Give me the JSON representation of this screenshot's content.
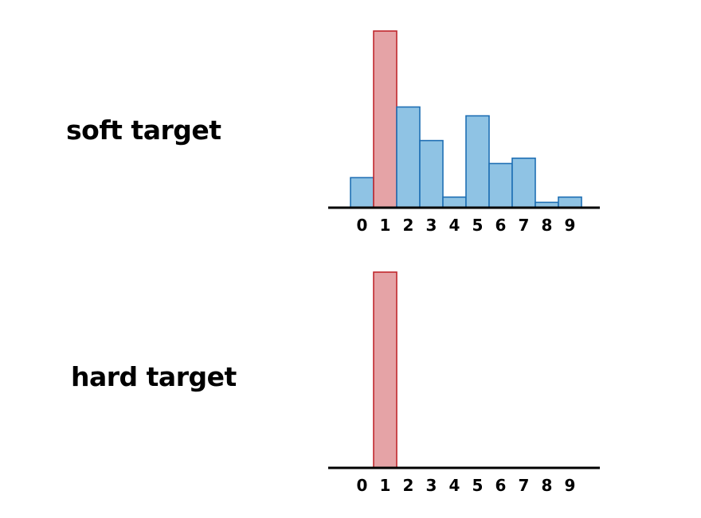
{
  "labels": {
    "soft": "soft target",
    "hard": "hard target"
  },
  "colors": {
    "highlight_fill": "#e5a3a6",
    "highlight_stroke": "#c0272d",
    "other_fill": "#8fc3e4",
    "other_stroke": "#1f6fb4",
    "axis": "#000000"
  },
  "chart_data": [
    {
      "type": "bar",
      "title": "soft target",
      "categories": [
        "0",
        "1",
        "2",
        "3",
        "4",
        "5",
        "6",
        "7",
        "8",
        "9"
      ],
      "values": [
        0.17,
        1.0,
        0.57,
        0.38,
        0.06,
        0.52,
        0.25,
        0.28,
        0.03,
        0.06
      ],
      "highlight_index": 1,
      "ylim": [
        0,
        1
      ],
      "grid": false
    },
    {
      "type": "bar",
      "title": "hard target",
      "categories": [
        "0",
        "1",
        "2",
        "3",
        "4",
        "5",
        "6",
        "7",
        "8",
        "9"
      ],
      "values": [
        0,
        1,
        0,
        0,
        0,
        0,
        0,
        0,
        0,
        0
      ],
      "highlight_index": 1,
      "ylim": [
        0,
        1
      ],
      "grid": false
    }
  ]
}
